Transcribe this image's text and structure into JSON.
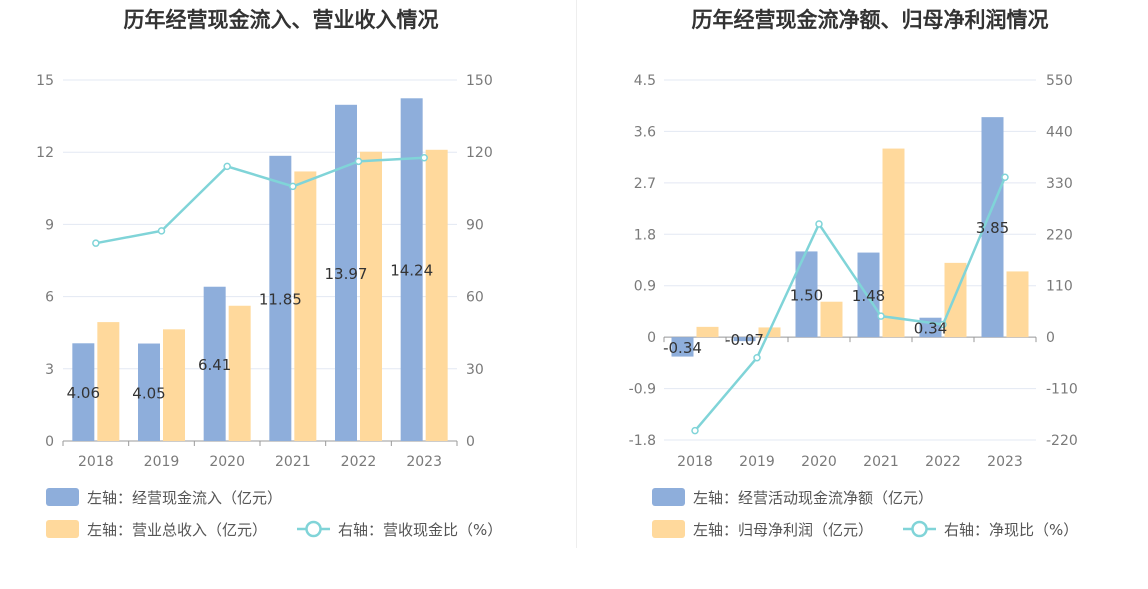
{
  "colors": {
    "blue": "#8eaedb",
    "orange": "#ffd99c",
    "line": "#80d4d8",
    "grid": "#e3e8f3",
    "axis": "#9a9a9a"
  },
  "chart_data": [
    {
      "type": "bar",
      "title": "历年经营现金流入、营业收入情况",
      "categories": [
        "2018",
        "2019",
        "2020",
        "2021",
        "2022",
        "2023"
      ],
      "left_axis": {
        "min": 0,
        "max": 15,
        "ticks": [
          "0",
          "3",
          "6",
          "9",
          "12",
          "15"
        ]
      },
      "right_axis": {
        "min": 0,
        "max": 150,
        "ticks": [
          "0",
          "30",
          "60",
          "90",
          "120",
          "150"
        ]
      },
      "series": [
        {
          "name": "左轴：经营现金流入（亿元）",
          "type": "bar",
          "axis": "left",
          "color": "#8eaedb",
          "values": [
            4.06,
            4.05,
            6.41,
            11.85,
            13.97,
            14.24
          ],
          "labels": [
            "4.06",
            "4.05",
            "6.41",
            "11.85",
            "13.97",
            "14.24"
          ]
        },
        {
          "name": "左轴：营业总收入（亿元）",
          "type": "bar",
          "axis": "left",
          "color": "#ffd99c",
          "values": [
            4.94,
            4.64,
            5.62,
            11.2,
            12.02,
            12.1
          ]
        },
        {
          "name": "右轴：营收现金比（%）",
          "type": "line",
          "axis": "right",
          "color": "#80d4d8",
          "values": [
            82.2,
            87.3,
            114.1,
            105.8,
            116.2,
            117.7
          ]
        }
      ]
    },
    {
      "type": "bar",
      "title": "历年经营现金流净额、归母净利润情况",
      "categories": [
        "2018",
        "2019",
        "2020",
        "2021",
        "2022",
        "2023"
      ],
      "left_axis": {
        "min": -1.8,
        "max": 4.5,
        "ticks": [
          "-1.8",
          "-0.9",
          "0",
          "0.9",
          "1.8",
          "2.7",
          "3.6",
          "4.5"
        ]
      },
      "right_axis": {
        "min": -220,
        "max": 550,
        "ticks": [
          "-220",
          "-110",
          "0",
          "110",
          "220",
          "330",
          "440",
          "550"
        ]
      },
      "series": [
        {
          "name": "左轴：经营活动现金流净额（亿元）",
          "type": "bar",
          "axis": "left",
          "color": "#8eaedb",
          "values": [
            -0.34,
            -0.07,
            1.5,
            1.48,
            0.34,
            3.85
          ],
          "labels": [
            "-0.34",
            "-0.07",
            "1.50",
            "1.48",
            "0.34",
            "3.85"
          ]
        },
        {
          "name": "左轴：归母净利润（亿元）",
          "type": "bar",
          "axis": "left",
          "color": "#ffd99c",
          "values": [
            0.18,
            0.17,
            0.62,
            3.3,
            1.3,
            1.15
          ]
        },
        {
          "name": "右轴：净现比（%）",
          "type": "line",
          "axis": "right",
          "color": "#80d4d8",
          "values": [
            -200,
            -44,
            242,
            45,
            27,
            342
          ]
        }
      ]
    }
  ]
}
